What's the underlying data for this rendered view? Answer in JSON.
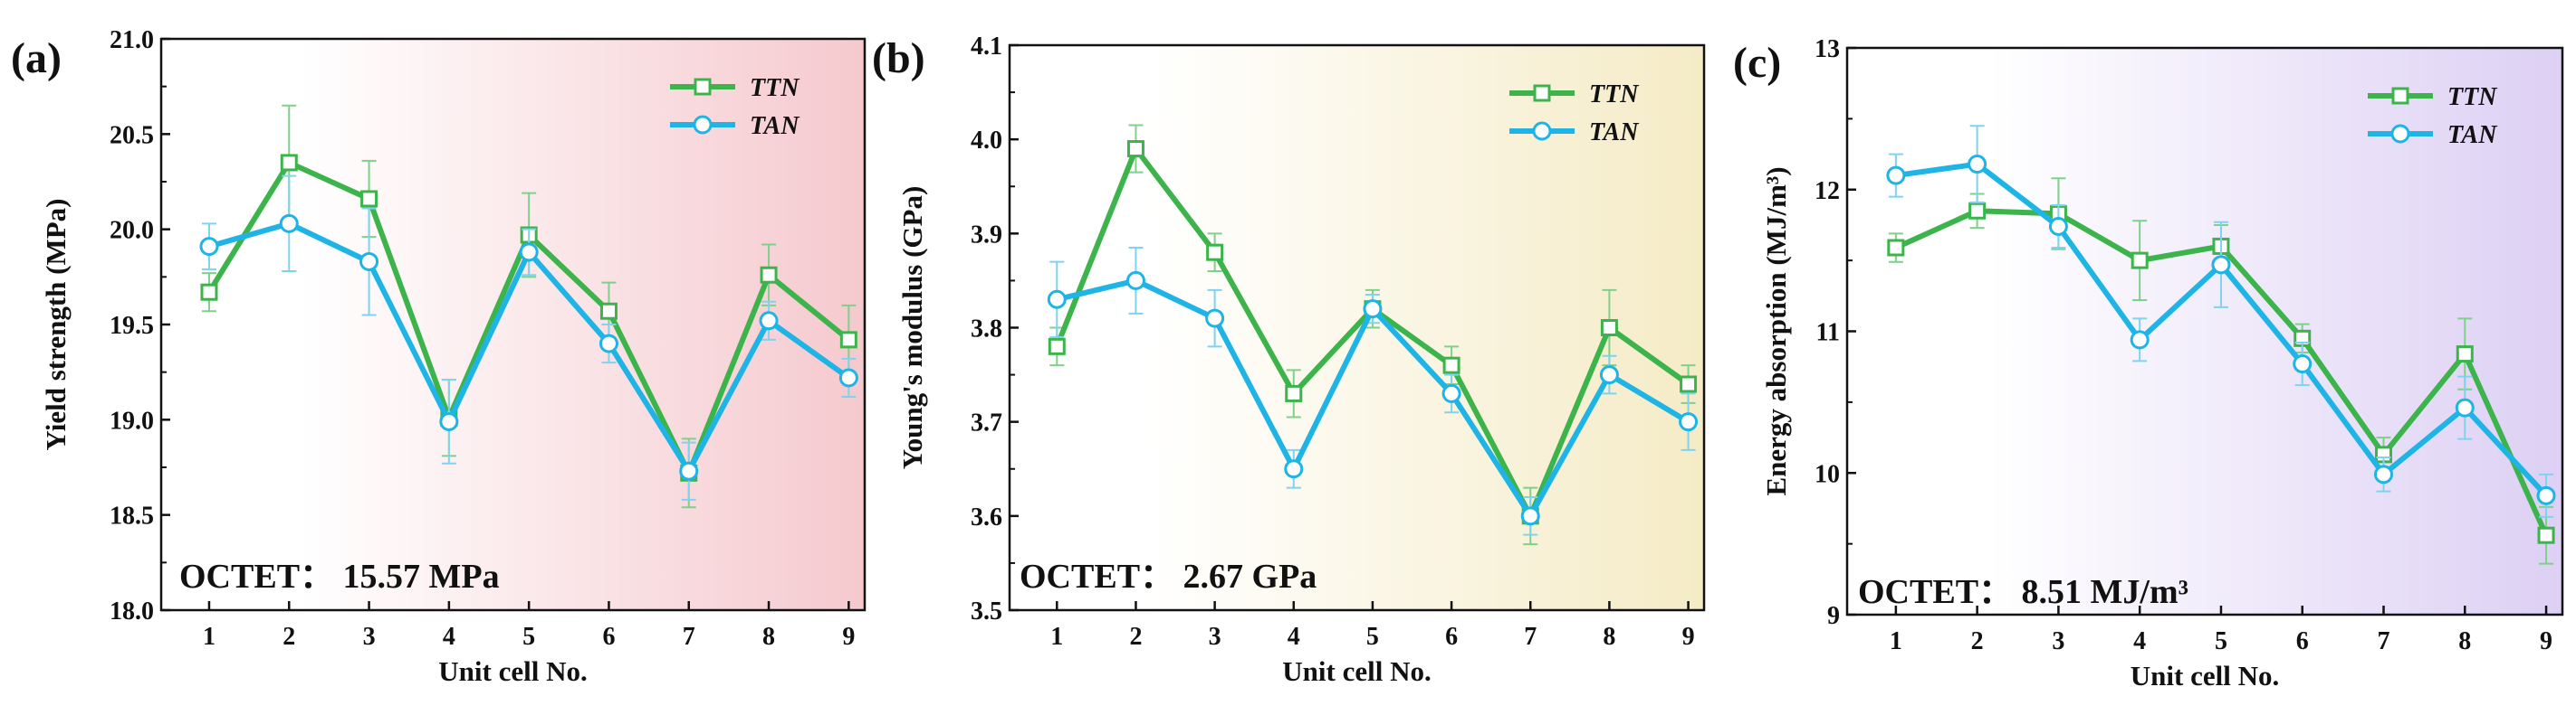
{
  "colors": {
    "ttn": "#3cb44b",
    "tan": "#1fb4e6",
    "err_ttn": "#7fd08a",
    "err_tan": "#7fd3ef",
    "bg_a": "#f5c9ce",
    "bg_b": "#f5ebc6",
    "bg_c": "#ddd0f4"
  },
  "chart_data": [
    {
      "type": "line",
      "panel_label": "(a)",
      "xlabel": "Unit cell No.",
      "ylabel": "Yield strength (MPa)",
      "ylim": [
        18.0,
        21.0
      ],
      "yticks": [
        "18.0",
        "18.5",
        "19.0",
        "19.5",
        "20.0",
        "20.5",
        "21.0"
      ],
      "x": [
        "1",
        "2",
        "3",
        "4",
        "5",
        "6",
        "7",
        "8",
        "9"
      ],
      "legend_position": "top-right",
      "annotation": "OCTET： 15.57 MPa",
      "series": [
        {
          "name": "TTN",
          "marker": "square",
          "values": [
            19.67,
            20.35,
            20.16,
            19.01,
            19.97,
            19.57,
            18.72,
            19.76,
            19.42
          ],
          "errors": [
            0.1,
            0.3,
            0.2,
            0.2,
            0.22,
            0.15,
            0.18,
            0.16,
            0.18
          ]
        },
        {
          "name": "TAN",
          "marker": "circle",
          "values": [
            19.91,
            20.03,
            19.83,
            18.99,
            19.88,
            19.4,
            18.73,
            19.52,
            19.22
          ],
          "errors": [
            0.12,
            0.25,
            0.28,
            0.22,
            0.12,
            0.1,
            0.15,
            0.1,
            0.1
          ]
        }
      ]
    },
    {
      "type": "line",
      "panel_label": "(b)",
      "xlabel": "Unit cell No.",
      "ylabel": "Young's modulus (GPa)",
      "ylim": [
        3.5,
        4.1
      ],
      "yticks": [
        "3.5",
        "3.6",
        "3.7",
        "3.8",
        "3.9",
        "4.0",
        "4.1"
      ],
      "x": [
        "1",
        "2",
        "3",
        "4",
        "5",
        "6",
        "7",
        "8",
        "9"
      ],
      "legend_position": "top-right",
      "annotation": "OCTET： 2.67 GPa",
      "series": [
        {
          "name": "TTN",
          "marker": "square",
          "values": [
            3.78,
            3.99,
            3.88,
            3.73,
            3.82,
            3.76,
            3.6,
            3.8,
            3.74
          ],
          "errors": [
            0.02,
            0.025,
            0.02,
            0.025,
            0.02,
            0.02,
            0.03,
            0.04,
            0.02
          ]
        },
        {
          "name": "TAN",
          "marker": "circle",
          "values": [
            3.83,
            3.85,
            3.81,
            3.65,
            3.82,
            3.73,
            3.6,
            3.75,
            3.7
          ],
          "errors": [
            0.04,
            0.035,
            0.03,
            0.02,
            0.015,
            0.02,
            0.02,
            0.02,
            0.03
          ]
        }
      ]
    },
    {
      "type": "line",
      "panel_label": "(c)",
      "xlabel": "Unit cell No.",
      "ylabel": "Energy absorption (MJ/m³)",
      "ylim": [
        9,
        13
      ],
      "yticks": [
        "9",
        "10",
        "11",
        "12",
        "13"
      ],
      "x": [
        "1",
        "2",
        "3",
        "4",
        "5",
        "6",
        "7",
        "8",
        "9"
      ],
      "legend_position": "top-right",
      "annotation": "OCTET： 8.51 MJ/m³",
      "series": [
        {
          "name": "TTN",
          "marker": "square",
          "values": [
            11.59,
            11.85,
            11.83,
            11.5,
            11.6,
            10.95,
            10.13,
            10.84,
            9.56
          ],
          "errors": [
            0.1,
            0.12,
            0.25,
            0.28,
            0.15,
            0.1,
            0.12,
            0.25,
            0.2
          ]
        },
        {
          "name": "TAN",
          "marker": "circle",
          "values": [
            12.1,
            12.18,
            11.74,
            10.94,
            11.47,
            10.77,
            9.99,
            10.46,
            9.84
          ],
          "errors": [
            0.15,
            0.27,
            0.15,
            0.15,
            0.3,
            0.15,
            0.12,
            0.22,
            0.15
          ]
        }
      ]
    }
  ]
}
